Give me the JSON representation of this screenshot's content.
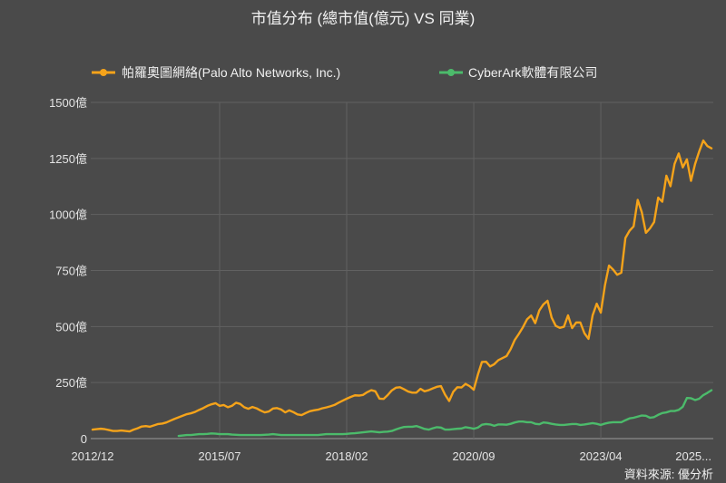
{
  "chart_data": {
    "type": "line",
    "title": "市值分布 (總市值(億元) VS 同業)",
    "legend_position": "top",
    "grid": true,
    "ylim": [
      0,
      1500
    ],
    "y_ticks": [
      {
        "value": 0,
        "label": "0"
      },
      {
        "value": 250,
        "label": "250億"
      },
      {
        "value": 500,
        "label": "500億"
      },
      {
        "value": 750,
        "label": "750億"
      },
      {
        "value": 1000,
        "label": "1000億"
      },
      {
        "value": 1250,
        "label": "1250億"
      },
      {
        "value": 1500,
        "label": "1500億"
      }
    ],
    "x_ticks": [
      "2012/12",
      "2015/07",
      "2018/02",
      "2020/09",
      "2023/04",
      "2025..."
    ],
    "x": [
      "2012/12",
      "2013/01",
      "2013/02",
      "2013/03",
      "2013/04",
      "2013/05",
      "2013/06",
      "2013/07",
      "2013/08",
      "2013/09",
      "2013/10",
      "2013/11",
      "2013/12",
      "2014/01",
      "2014/02",
      "2014/03",
      "2014/04",
      "2014/05",
      "2014/06",
      "2014/07",
      "2014/08",
      "2014/09",
      "2014/10",
      "2014/11",
      "2014/12",
      "2015/01",
      "2015/02",
      "2015/03",
      "2015/04",
      "2015/05",
      "2015/06",
      "2015/07",
      "2015/08",
      "2015/09",
      "2015/10",
      "2015/11",
      "2015/12",
      "2016/01",
      "2016/02",
      "2016/03",
      "2016/04",
      "2016/05",
      "2016/06",
      "2016/07",
      "2016/08",
      "2016/09",
      "2016/10",
      "2016/11",
      "2016/12",
      "2017/01",
      "2017/02",
      "2017/03",
      "2017/04",
      "2017/05",
      "2017/06",
      "2017/07",
      "2017/08",
      "2017/09",
      "2017/10",
      "2017/11",
      "2017/12",
      "2018/01",
      "2018/02",
      "2018/03",
      "2018/04",
      "2018/05",
      "2018/06",
      "2018/07",
      "2018/08",
      "2018/09",
      "2018/10",
      "2018/11",
      "2018/12",
      "2019/01",
      "2019/02",
      "2019/03",
      "2019/04",
      "2019/05",
      "2019/06",
      "2019/07",
      "2019/08",
      "2019/09",
      "2019/10",
      "2019/11",
      "2019/12",
      "2020/01",
      "2020/02",
      "2020/03",
      "2020/04",
      "2020/05",
      "2020/06",
      "2020/07",
      "2020/08",
      "2020/09",
      "2020/10",
      "2020/11",
      "2020/12",
      "2021/01",
      "2021/02",
      "2021/03",
      "2021/04",
      "2021/05",
      "2021/06",
      "2021/07",
      "2021/08",
      "2021/09",
      "2021/10",
      "2021/11",
      "2021/12",
      "2022/01",
      "2022/02",
      "2022/03",
      "2022/04",
      "2022/05",
      "2022/06",
      "2022/07",
      "2022/08",
      "2022/09",
      "2022/10",
      "2022/11",
      "2022/12",
      "2023/01",
      "2023/02",
      "2023/03",
      "2023/04",
      "2023/05",
      "2023/06",
      "2023/07",
      "2023/08",
      "2023/09",
      "2023/10",
      "2023/11",
      "2023/12",
      "2024/01",
      "2024/02",
      "2024/03",
      "2024/04",
      "2024/05",
      "2024/06",
      "2024/07",
      "2024/08",
      "2024/09",
      "2024/10",
      "2024/11",
      "2024/12",
      "2025/01",
      "2025/02",
      "2025/03",
      "2025/04",
      "2025/05",
      "2025/06",
      "2025/07"
    ],
    "series": [
      {
        "name": "帕羅奧圖網絡(Palo Alto Networks, Inc.)",
        "color": "#f5a31a",
        "values": [
          40,
          42,
          44,
          42,
          38,
          34,
          34,
          36,
          34,
          32,
          40,
          46,
          54,
          56,
          53,
          59,
          65,
          67,
          72,
          80,
          88,
          95,
          102,
          109,
          113,
          119,
          128,
          136,
          146,
          153,
          158,
          146,
          150,
          140,
          146,
          160,
          155,
          140,
          133,
          141,
          135,
          125,
          117,
          121,
          134,
          136,
          130,
          117,
          126,
          118,
          108,
          105,
          114,
          122,
          126,
          129,
          135,
          139,
          144,
          150,
          160,
          169,
          178,
          186,
          193,
          192,
          195,
          207,
          216,
          211,
          178,
          177,
          194,
          215,
          227,
          229,
          220,
          210,
          205,
          205,
          222,
          211,
          216,
          224,
          231,
          234,
          196,
          168,
          209,
          229,
          228,
          244,
          234,
          218,
          285,
          342,
          343,
          322,
          332,
          350,
          359,
          368,
          399,
          440,
          467,
          497,
          532,
          549,
          515,
          572,
          599,
          615,
          540,
          503,
          494,
          499,
          550,
          493,
          518,
          518,
          470,
          445,
          550,
          602,
          562,
          683,
          772,
          754,
          731,
          740,
          895,
          927,
          947,
          1065,
          1010,
          918,
          938,
          966,
          1075,
          1057,
          1173,
          1126,
          1226,
          1272,
          1210,
          1246,
          1150,
          1225,
          1281,
          1330,
          1305,
          1295
        ]
      },
      {
        "name": "CyberArk軟體有限公司",
        "color": "#4cbb6b",
        "values": [
          null,
          null,
          null,
          null,
          null,
          null,
          null,
          null,
          null,
          null,
          null,
          null,
          null,
          null,
          null,
          null,
          null,
          null,
          null,
          null,
          null,
          12,
          14,
          16,
          16,
          18,
          20,
          20,
          21,
          23,
          22,
          20,
          20,
          20,
          18,
          17,
          16,
          16,
          16,
          16,
          16,
          16,
          17,
          18,
          20,
          18,
          16,
          16,
          16,
          16,
          16,
          16,
          16,
          16,
          16,
          16,
          18,
          20,
          20,
          20,
          20,
          20,
          21,
          23,
          24,
          26,
          28,
          30,
          32,
          30,
          28,
          30,
          31,
          34,
          41,
          47,
          52,
          53,
          53,
          56,
          50,
          43,
          40,
          46,
          51,
          49,
          40,
          40,
          42,
          44,
          45,
          51,
          48,
          44,
          49,
          62,
          65,
          63,
          57,
          63,
          63,
          62,
          66,
          72,
          76,
          76,
          73,
          73,
          66,
          64,
          72,
          70,
          66,
          63,
          61,
          61,
          63,
          65,
          65,
          61,
          63,
          66,
          69,
          66,
          61,
          67,
          71,
          73,
          73,
          73,
          82,
          90,
          93,
          98,
          103,
          102,
          93,
          96,
          106,
          114,
          117,
          123,
          123,
          128,
          142,
          181,
          180,
          172,
          178,
          194,
          204,
          216
        ]
      }
    ]
  },
  "source": "資料來源: 優分析"
}
